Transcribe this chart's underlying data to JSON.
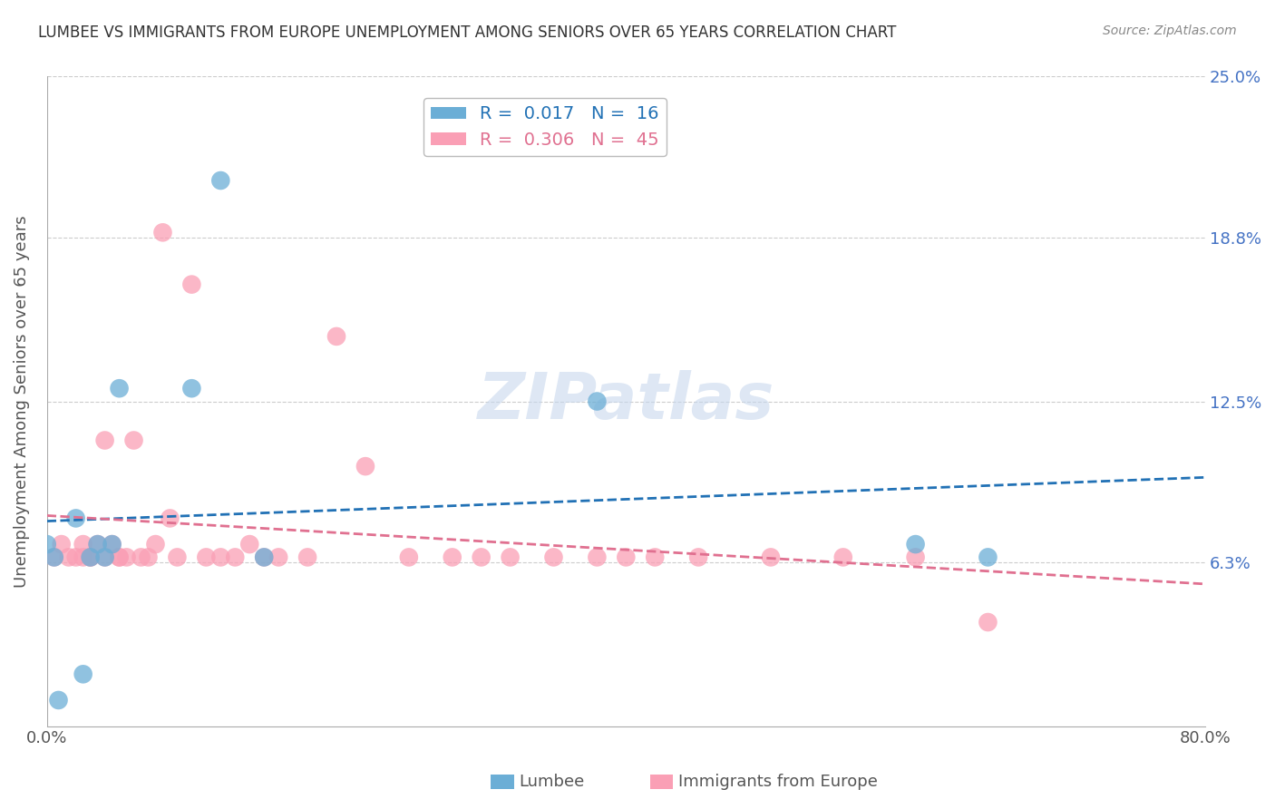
{
  "title": "LUMBEE VS IMMIGRANTS FROM EUROPE UNEMPLOYMENT AMONG SENIORS OVER 65 YEARS CORRELATION CHART",
  "source": "Source: ZipAtlas.com",
  "ylabel": "Unemployment Among Seniors over 65 years",
  "xlim": [
    0.0,
    0.8
  ],
  "ylim": [
    0.0,
    0.25
  ],
  "lumbee_R": 0.017,
  "lumbee_N": 16,
  "europe_R": 0.306,
  "europe_N": 45,
  "lumbee_color": "#6baed6",
  "europe_color": "#fa9fb5",
  "lumbee_line_color": "#2171b5",
  "europe_line_color": "#e07090",
  "background_color": "#ffffff",
  "lumbee_x": [
    0.0,
    0.02,
    0.025,
    0.03,
    0.035,
    0.04,
    0.045,
    0.05,
    0.1,
    0.12,
    0.15,
    0.6,
    0.65,
    0.005,
    0.008,
    0.38
  ],
  "lumbee_y": [
    0.07,
    0.08,
    0.02,
    0.065,
    0.07,
    0.065,
    0.07,
    0.13,
    0.13,
    0.21,
    0.065,
    0.07,
    0.065,
    0.065,
    0.01,
    0.125
  ],
  "europe_x": [
    0.005,
    0.01,
    0.015,
    0.02,
    0.025,
    0.025,
    0.03,
    0.03,
    0.035,
    0.04,
    0.04,
    0.045,
    0.05,
    0.05,
    0.055,
    0.06,
    0.065,
    0.07,
    0.075,
    0.08,
    0.085,
    0.09,
    0.1,
    0.11,
    0.12,
    0.13,
    0.14,
    0.15,
    0.16,
    0.18,
    0.2,
    0.22,
    0.25,
    0.28,
    0.3,
    0.32,
    0.35,
    0.38,
    0.4,
    0.42,
    0.45,
    0.5,
    0.55,
    0.6,
    0.65
  ],
  "europe_y": [
    0.065,
    0.07,
    0.065,
    0.065,
    0.065,
    0.07,
    0.065,
    0.065,
    0.07,
    0.065,
    0.11,
    0.07,
    0.065,
    0.065,
    0.065,
    0.11,
    0.065,
    0.065,
    0.07,
    0.19,
    0.08,
    0.065,
    0.17,
    0.065,
    0.065,
    0.065,
    0.07,
    0.065,
    0.065,
    0.065,
    0.15,
    0.1,
    0.065,
    0.065,
    0.065,
    0.065,
    0.065,
    0.065,
    0.065,
    0.065,
    0.065,
    0.065,
    0.065,
    0.065,
    0.04
  ]
}
